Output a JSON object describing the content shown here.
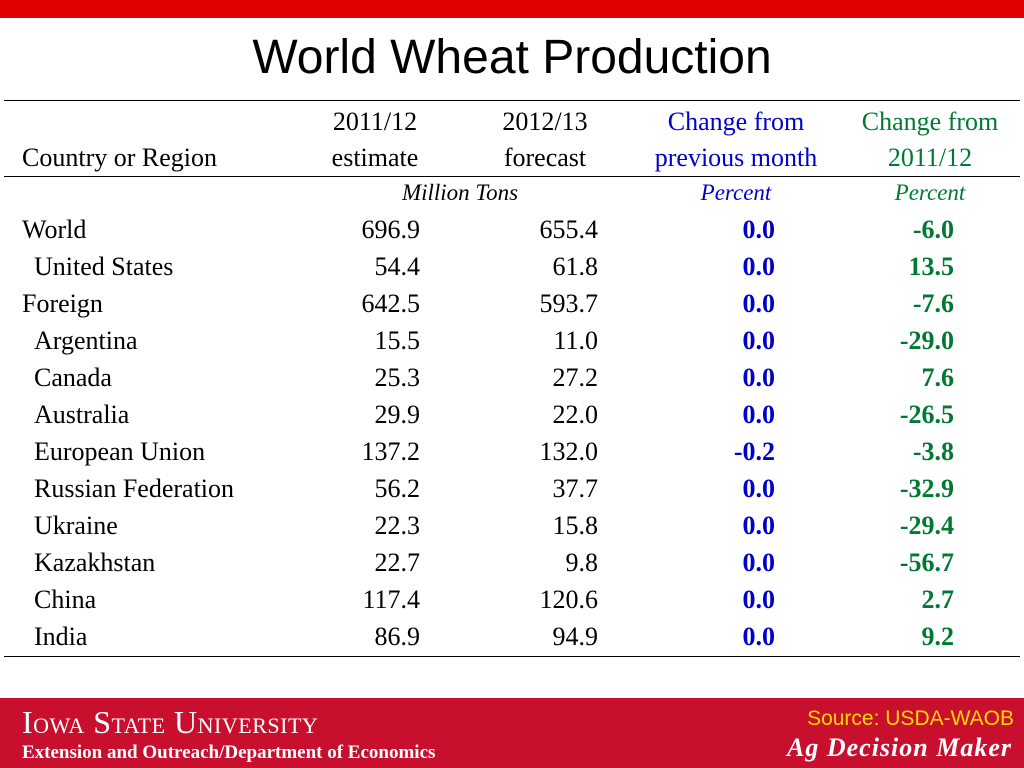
{
  "slide": {
    "title": "World Wheat Production"
  },
  "colors": {
    "accent_red": "#e00000",
    "footer_red": "#c8102e",
    "blue": "#0000cc",
    "green": "#007a33",
    "source_yellow": "#ffd700"
  },
  "table": {
    "headers": {
      "country": "Country or Region",
      "col1_line1": "2011/12",
      "col1_line2": "estimate",
      "col2_line1": "2012/13",
      "col2_line2": "forecast",
      "col3_line1": "Change from",
      "col3_line2": "previous month",
      "col4_line1": "Change from",
      "col4_line2": "2011/12"
    },
    "units": {
      "tons": "Million Tons",
      "pct_month": "Percent",
      "pct_year": "Percent"
    },
    "rows": [
      {
        "name": "World",
        "est": "696.9",
        "fcst": "655.4",
        "chg_month": "0.0",
        "chg_year": "-6.0",
        "indent": false
      },
      {
        "name": "United States",
        "est": "54.4",
        "fcst": "61.8",
        "chg_month": "0.0",
        "chg_year": "13.5",
        "indent": true
      },
      {
        "name": "Foreign",
        "est": "642.5",
        "fcst": "593.7",
        "chg_month": "0.0",
        "chg_year": "-7.6",
        "indent": false
      },
      {
        "name": "Argentina",
        "est": "15.5",
        "fcst": "11.0",
        "chg_month": "0.0",
        "chg_year": "-29.0",
        "indent": true
      },
      {
        "name": "Canada",
        "est": "25.3",
        "fcst": "27.2",
        "chg_month": "0.0",
        "chg_year": "7.6",
        "indent": true
      },
      {
        "name": "Australia",
        "est": "29.9",
        "fcst": "22.0",
        "chg_month": "0.0",
        "chg_year": "-26.5",
        "indent": true
      },
      {
        "name": "European Union",
        "est": "137.2",
        "fcst": "132.0",
        "chg_month": "-0.2",
        "chg_year": "-3.8",
        "indent": true
      },
      {
        "name": "Russian Federation",
        "est": "56.2",
        "fcst": "37.7",
        "chg_month": "0.0",
        "chg_year": "-32.9",
        "indent": true
      },
      {
        "name": "Ukraine",
        "est": "22.3",
        "fcst": "15.8",
        "chg_month": "0.0",
        "chg_year": "-29.4",
        "indent": true
      },
      {
        "name": "Kazakhstan",
        "est": "22.7",
        "fcst": "9.8",
        "chg_month": "0.0",
        "chg_year": "-56.7",
        "indent": true
      },
      {
        "name": "China",
        "est": "117.4",
        "fcst": "120.6",
        "chg_month": "0.0",
        "chg_year": "2.7",
        "indent": true
      },
      {
        "name": "India",
        "est": "86.9",
        "fcst": "94.9",
        "chg_month": "0.0",
        "chg_year": "9.2",
        "indent": true
      }
    ]
  },
  "footer": {
    "university": "Iowa State University",
    "department": "Extension and Outreach/Department of Economics",
    "source": "Source: USDA-WAOB",
    "brand": "Ag Decision Maker"
  }
}
